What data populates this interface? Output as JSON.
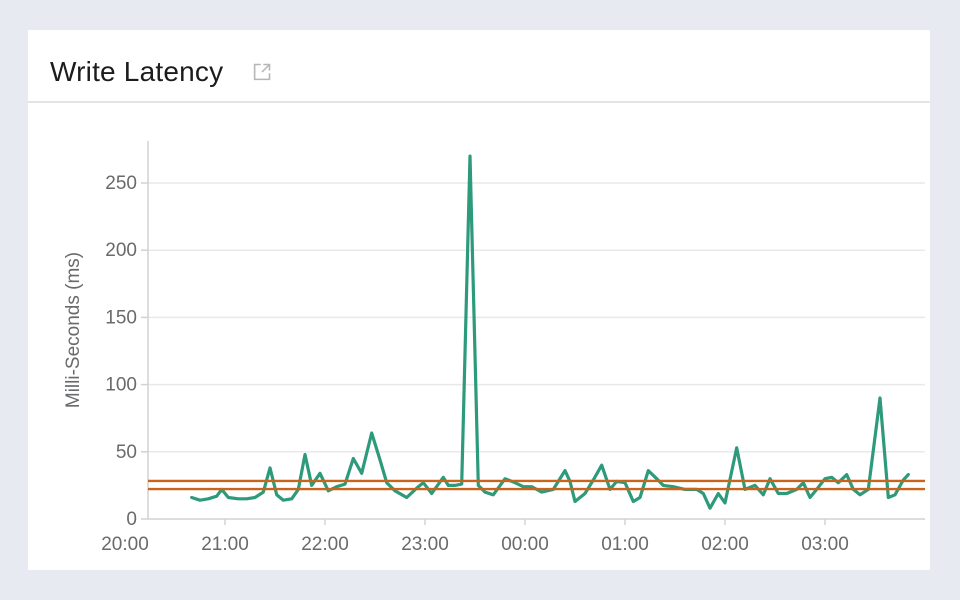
{
  "card": {
    "title": "Write Latency"
  },
  "colors": {
    "page_background": "#e8eaf2",
    "card_background": "#ffffff",
    "title_text": "#1c1c1e",
    "divider": "#e4e4e6",
    "grid": "#e9e9ea",
    "axis": "#d2d2d4",
    "tick_text": "#696a6c",
    "icon": "#b6b6b8",
    "line": "#2d9a7c",
    "reference": "#c9651a"
  },
  "chart_data": {
    "type": "line",
    "title": "Write Latency",
    "xlabel": "",
    "ylabel": "Milli-Seconds (ms)",
    "legend": "none",
    "grid": true,
    "ylim": [
      0,
      280
    ],
    "y_ticks": [
      0,
      50,
      100,
      150,
      200,
      250
    ],
    "x_unit": "minutes_after_20:00",
    "x_range_minutes": [
      14,
      480
    ],
    "x_ticks": [
      {
        "t": 0,
        "label": "20:00"
      },
      {
        "t": 60,
        "label": "21:00"
      },
      {
        "t": 120,
        "label": "22:00"
      },
      {
        "t": 180,
        "label": "23:00"
      },
      {
        "t": 240,
        "label": "00:00"
      },
      {
        "t": 300,
        "label": "01:00"
      },
      {
        "t": 360,
        "label": "02:00"
      },
      {
        "t": 420,
        "label": "03:00"
      }
    ],
    "reference_lines": [
      {
        "name": "upper-threshold",
        "value": 28.3,
        "color": "#c9651a"
      },
      {
        "name": "lower-threshold",
        "value": 22.3,
        "color": "#c9651a"
      }
    ],
    "series": [
      {
        "name": "write_latency_ms",
        "color": "#2d9a7c",
        "points": [
          [
            40,
            16
          ],
          [
            45,
            14
          ],
          [
            50,
            15
          ],
          [
            55,
            17
          ],
          [
            58,
            22
          ],
          [
            62,
            16
          ],
          [
            68,
            15
          ],
          [
            73,
            15
          ],
          [
            78,
            16
          ],
          [
            83,
            20
          ],
          [
            87,
            38
          ],
          [
            91,
            18
          ],
          [
            95,
            14
          ],
          [
            100,
            15
          ],
          [
            104,
            22
          ],
          [
            108,
            48
          ],
          [
            112,
            25
          ],
          [
            117,
            34
          ],
          [
            122,
            21
          ],
          [
            127,
            24
          ],
          [
            132,
            26
          ],
          [
            137,
            45
          ],
          [
            142,
            34
          ],
          [
            148,
            64
          ],
          [
            153,
            44
          ],
          [
            157,
            27
          ],
          [
            162,
            21
          ],
          [
            169,
            16
          ],
          [
            176,
            24
          ],
          [
            179,
            27
          ],
          [
            184,
            19
          ],
          [
            191,
            31
          ],
          [
            194,
            25
          ],
          [
            198,
            25
          ],
          [
            202,
            26
          ],
          [
            207,
            270
          ],
          [
            212,
            25
          ],
          [
            216,
            20
          ],
          [
            221,
            18
          ],
          [
            228,
            30
          ],
          [
            234,
            27
          ],
          [
            239,
            24
          ],
          [
            244,
            24
          ],
          [
            250,
            20
          ],
          [
            257,
            22
          ],
          [
            264,
            36
          ],
          [
            267,
            28
          ],
          [
            270,
            13
          ],
          [
            276,
            19
          ],
          [
            281,
            29
          ],
          [
            286,
            40
          ],
          [
            291,
            22
          ],
          [
            295,
            28
          ],
          [
            300,
            27
          ],
          [
            305,
            13
          ],
          [
            309,
            16
          ],
          [
            314,
            36
          ],
          [
            319,
            30
          ],
          [
            323,
            25
          ],
          [
            329,
            24
          ],
          [
            336,
            22
          ],
          [
            343,
            22
          ],
          [
            347,
            19
          ],
          [
            351,
            8
          ],
          [
            356,
            19
          ],
          [
            360,
            12
          ],
          [
            367,
            53
          ],
          [
            372,
            22
          ],
          [
            378,
            25
          ],
          [
            383,
            18
          ],
          [
            387,
            30
          ],
          [
            392,
            19
          ],
          [
            397,
            19
          ],
          [
            403,
            22
          ],
          [
            407,
            27
          ],
          [
            411,
            16
          ],
          [
            415,
            22
          ],
          [
            420,
            30
          ],
          [
            424,
            31
          ],
          [
            428,
            27
          ],
          [
            433,
            33
          ],
          [
            437,
            22
          ],
          [
            441,
            18
          ],
          [
            446,
            22
          ],
          [
            453,
            90
          ],
          [
            458,
            16
          ],
          [
            462,
            18
          ],
          [
            467,
            29
          ],
          [
            470,
            33
          ]
        ]
      }
    ]
  }
}
